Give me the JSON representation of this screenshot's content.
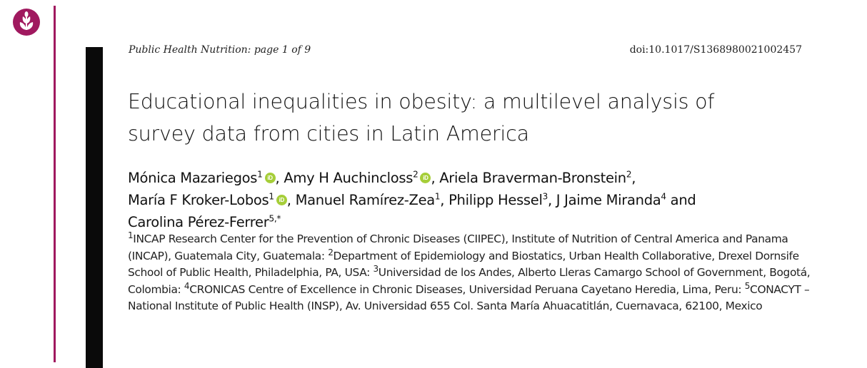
{
  "header": {
    "journal": "Public Health Nutrition",
    "page_info": ": page 1 of 9",
    "doi": "doi:10.1017/S1368980021002457"
  },
  "colors": {
    "brand": "#a0195f",
    "orcid": "#a6ce39",
    "bar": "#0a0a0a"
  },
  "logo": {
    "icon": "wheat-leaf-icon"
  },
  "title_lines": [
    "Educational inequalities in obesity: a multilevel analysis of",
    "survey data from cities in Latin America"
  ],
  "authors": {
    "a1": "Mónica Mazariegos",
    "a1_sup": "1",
    "a2": "Amy H Auchincloss",
    "a2_sup": "2",
    "a3": "Ariela Braverman-Bronstein",
    "a3_sup": "2",
    "a4": "María F Kroker-Lobos",
    "a4_sup": "1",
    "a5": "Manuel Ramírez-Zea",
    "a5_sup": "1",
    "a6": "Philipp Hessel",
    "a6_sup": "3",
    "a7": "J Jaime Miranda",
    "a7_sup": "4",
    "and": "and",
    "a8": "Carolina Pérez-Ferrer",
    "a8_sup": "5,",
    "corresponding": "*"
  },
  "affiliations": {
    "n1": "1",
    "t1": "INCAP Research Center for the Prevention of Chronic Diseases (CIIPEC), Institute of Nutrition of Central America and Panama (INCAP), Guatemala City, Guatemala:",
    "n2": "2",
    "t2": "Department of Epidemiology and Biostatics, Urban Health Collaborative, Drexel Dornsife School of Public Health, Philadelphia, PA, USA:",
    "n3": "3",
    "t3": "Universidad de los Andes, Alberto Lleras Camargo School of Government, Bogotá, Colombia:",
    "n4": "4",
    "t4": "CRONICAS Centre of Excellence in Chronic Diseases, Universidad Peruana Cayetano Heredia, Lima, Peru:",
    "n5": "5",
    "t5": "CONACYT – National Institute of Public Health (INSP), Av. Universidad 655 Col. Santa María Ahuacatitlán, Cuernavaca, 62100, Mexico"
  }
}
